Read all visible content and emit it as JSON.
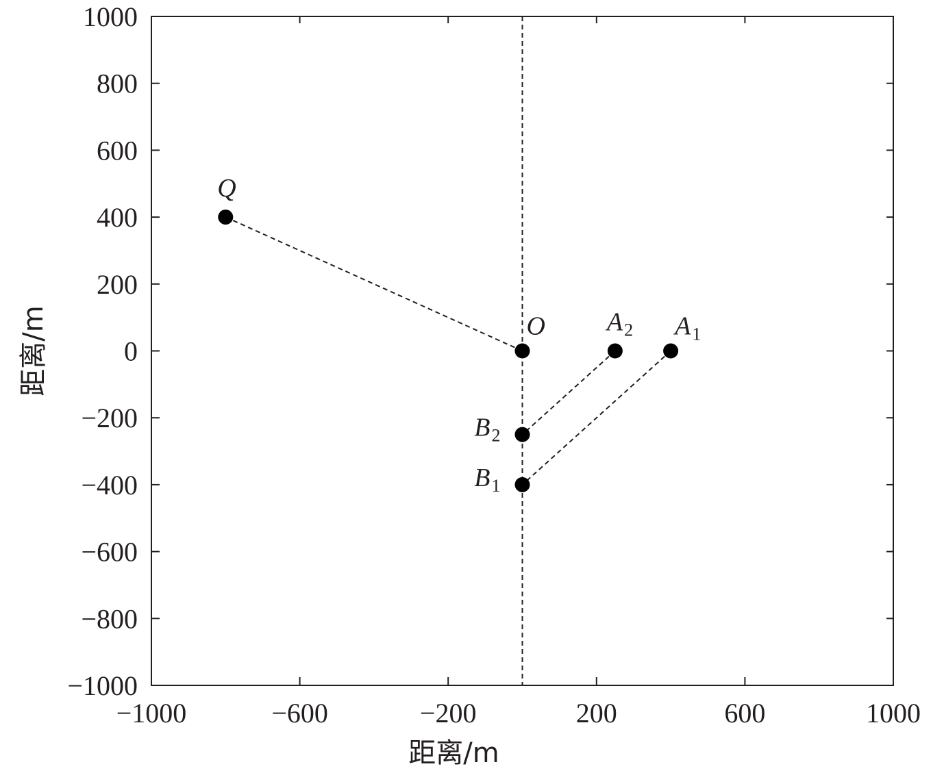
{
  "chart_data": {
    "type": "scatter",
    "xlabel": "距离/m",
    "ylabel": "距离/m",
    "xlim": [
      -1000,
      1000
    ],
    "ylim": [
      -1000,
      1000
    ],
    "xticks": [
      -1000,
      -600,
      -200,
      200,
      600,
      1000
    ],
    "xtick_labels": [
      "−1000",
      "−600",
      "−200",
      "200",
      "600",
      "1000"
    ],
    "yticks": [
      1000,
      800,
      600,
      400,
      200,
      0,
      -200,
      -400,
      -600,
      -800,
      -1000
    ],
    "ytick_labels": [
      "1000",
      "800",
      "600",
      "400",
      "200",
      "0",
      "−200",
      "−400",
      "−600",
      "−800",
      "−1000"
    ],
    "grid": false,
    "reference_line": {
      "axis": "x",
      "value": 0,
      "style": "dashed"
    },
    "points": [
      {
        "id": "Q",
        "label": "Q",
        "sub": "",
        "x": -800,
        "y": 400,
        "label_pos": "above"
      },
      {
        "id": "O",
        "label": "O",
        "sub": "",
        "x": 0,
        "y": 0,
        "label_pos": "above-right"
      },
      {
        "id": "A2",
        "label": "A",
        "sub": "2",
        "x": 250,
        "y": 0,
        "label_pos": "above"
      },
      {
        "id": "A1",
        "label": "A",
        "sub": "1",
        "x": 400,
        "y": 0,
        "label_pos": "above-right"
      },
      {
        "id": "B2",
        "label": "B",
        "sub": "2",
        "x": 0,
        "y": -250,
        "label_pos": "left"
      },
      {
        "id": "B1",
        "label": "B",
        "sub": "1",
        "x": 0,
        "y": -400,
        "label_pos": "left"
      }
    ],
    "connections": [
      {
        "from": "Q",
        "to": "O",
        "style": "dashed"
      },
      {
        "from": "A2",
        "to": "B2",
        "style": "dashed"
      },
      {
        "from": "A1",
        "to": "B1",
        "style": "dashed"
      }
    ],
    "colors": {
      "ink": "#231f20",
      "marker": "#000000"
    }
  }
}
